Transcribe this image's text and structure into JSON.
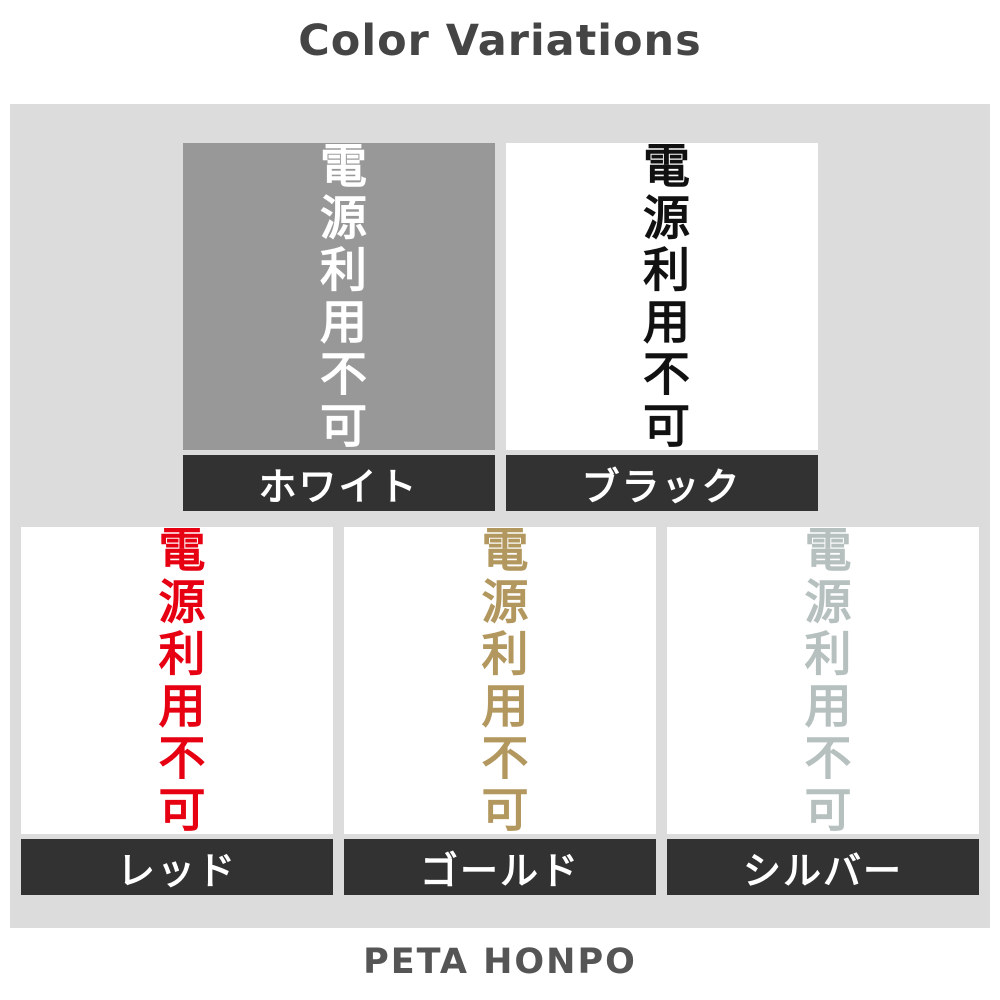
{
  "title": "Color Variations",
  "footer": "PETA HONPO",
  "sample_text": "電源利用不可",
  "colors": {
    "page_background": "#ffffff",
    "panel_background": "#dcdcdc",
    "label_bar_background": "#323232",
    "label_text": "#ffffff",
    "title_text": "#454545",
    "footer_text": "#555555"
  },
  "swatches": [
    {
      "id": "white",
      "label": "ホワイト",
      "swatch_bg": "#989898",
      "text_color": "#ffffff"
    },
    {
      "id": "black",
      "label": "ブラック",
      "swatch_bg": "#ffffff",
      "text_color": "#111111"
    },
    {
      "id": "red",
      "label": "レッド",
      "swatch_bg": "#ffffff",
      "text_color": "#e60012"
    },
    {
      "id": "gold",
      "label": "ゴールド",
      "swatch_bg": "#ffffff",
      "text_color": "#b2975e"
    },
    {
      "id": "silver",
      "label": "シルバー",
      "swatch_bg": "#ffffff",
      "text_color": "#b6c0bf"
    }
  ]
}
